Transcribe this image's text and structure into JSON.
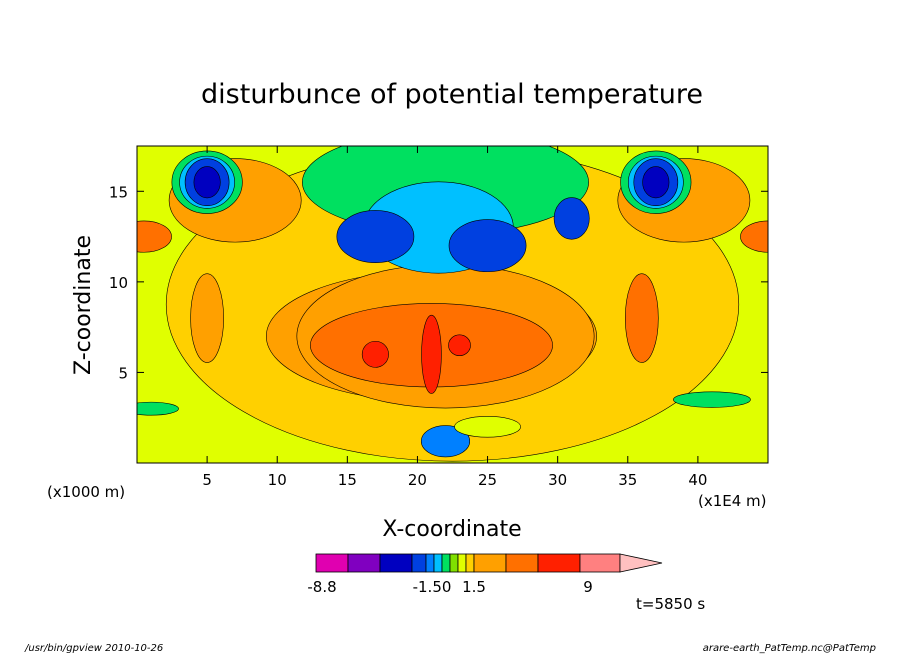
{
  "chart_data": {
    "type": "heatmap",
    "title": "disturbunce of potential temperature",
    "xlabel": "X-coordinate",
    "ylabel": "Z-coordinate",
    "x_unit": "(x1E4 m)",
    "y_unit": "(x1000 m)",
    "xlim": [
      0,
      45
    ],
    "ylim": [
      0,
      17.5
    ],
    "x_ticks": [
      5,
      10,
      15,
      20,
      25,
      30,
      35,
      40
    ],
    "y_ticks": [
      5,
      10,
      15
    ],
    "x_tick_labels": [
      "5",
      "10",
      "15",
      "20",
      "25",
      "30",
      "35",
      "40"
    ],
    "y_tick_labels": [
      "5",
      "10",
      "15"
    ],
    "time_label": "t=5850 s",
    "colorbar": {
      "colors": [
        "#e000b0",
        "#8000c0",
        "#0000c0",
        "#0040e0",
        "#0080ff",
        "#00c0ff",
        "#00e060",
        "#80e000",
        "#e0ff00",
        "#ffd000",
        "#ffa000",
        "#ff7000",
        "#ff2000",
        "#ff8080",
        "#ffc0c0"
      ],
      "tick_labels": [
        "-8.8",
        "-1.50",
        "1.5",
        "9"
      ]
    },
    "blobs": [
      {
        "x": 22.5,
        "y": 8.75,
        "rx": 26,
        "ry": 12,
        "level": 9
      },
      {
        "x": 21,
        "y": 7,
        "rx": 15,
        "ry": 5,
        "level": 10
      },
      {
        "x": 7,
        "y": 14.5,
        "rx": 6,
        "ry": 3.2,
        "level": 10
      },
      {
        "x": 39,
        "y": 14.5,
        "rx": 6,
        "ry": 3.2,
        "level": 10
      },
      {
        "x": 0.5,
        "y": 12.5,
        "rx": 2.5,
        "ry": 1.2,
        "level": 11
      },
      {
        "x": 45,
        "y": 12.5,
        "rx": 2.5,
        "ry": 1.2,
        "level": 11
      },
      {
        "x": 22,
        "y": 15.5,
        "rx": 13,
        "ry": 4,
        "level": 6
      },
      {
        "x": 22,
        "y": 7,
        "rx": 13.5,
        "ry": 5.5,
        "level": 10
      },
      {
        "x": 21,
        "y": 6.5,
        "rx": 11,
        "ry": 3.2,
        "level": 11
      },
      {
        "x": 5,
        "y": 8,
        "rx": 1.5,
        "ry": 3.4,
        "level": 10
      },
      {
        "x": 36,
        "y": 8,
        "rx": 1.5,
        "ry": 3.4,
        "level": 11
      },
      {
        "x": 21.5,
        "y": 13,
        "rx": 6.8,
        "ry": 3.5,
        "level": 5
      },
      {
        "x": 17,
        "y": 12.5,
        "rx": 3.5,
        "ry": 2,
        "level": 3
      },
      {
        "x": 25,
        "y": 12,
        "rx": 3.5,
        "ry": 2,
        "level": 3
      },
      {
        "x": 21,
        "y": 6,
        "rx": 0.9,
        "ry": 3,
        "level": 12
      },
      {
        "x": 17,
        "y": 6,
        "rx": 1.2,
        "ry": 1,
        "level": 12
      },
      {
        "x": 23,
        "y": 6.5,
        "rx": 1,
        "ry": 0.8,
        "level": 12
      },
      {
        "x": 5,
        "y": 15.5,
        "rx": 3.2,
        "ry": 2.4,
        "level": 6
      },
      {
        "x": 37,
        "y": 15.5,
        "rx": 3.2,
        "ry": 2.4,
        "level": 6
      },
      {
        "x": 5,
        "y": 15.5,
        "rx": 2.5,
        "ry": 2,
        "level": 5
      },
      {
        "x": 37,
        "y": 15.5,
        "rx": 2.5,
        "ry": 2,
        "level": 5
      },
      {
        "x": 5,
        "y": 15.5,
        "rx": 2,
        "ry": 1.8,
        "level": 3
      },
      {
        "x": 37,
        "y": 15.5,
        "rx": 2,
        "ry": 1.8,
        "level": 3
      },
      {
        "x": 5,
        "y": 15.5,
        "rx": 1.2,
        "ry": 1.2,
        "level": 2
      },
      {
        "x": 37,
        "y": 15.5,
        "rx": 1.2,
        "ry": 1.2,
        "level": 2
      },
      {
        "x": 31,
        "y": 13.5,
        "rx": 1.6,
        "ry": 1.6,
        "level": 3
      },
      {
        "x": 1,
        "y": 3,
        "rx": 2.5,
        "ry": 0.5,
        "level": 6
      },
      {
        "x": 41,
        "y": 3.5,
        "rx": 3.5,
        "ry": 0.6,
        "level": 6
      },
      {
        "x": 22,
        "y": 1.2,
        "rx": 2.2,
        "ry": 1.2,
        "level": 4
      },
      {
        "x": 25,
        "y": 2,
        "rx": 3,
        "ry": 0.8,
        "level": 8
      }
    ]
  },
  "footer": {
    "left": "/usr/bin/gpview  2010-10-26",
    "right": "arare-earth_PatTemp.nc@PatTemp"
  }
}
